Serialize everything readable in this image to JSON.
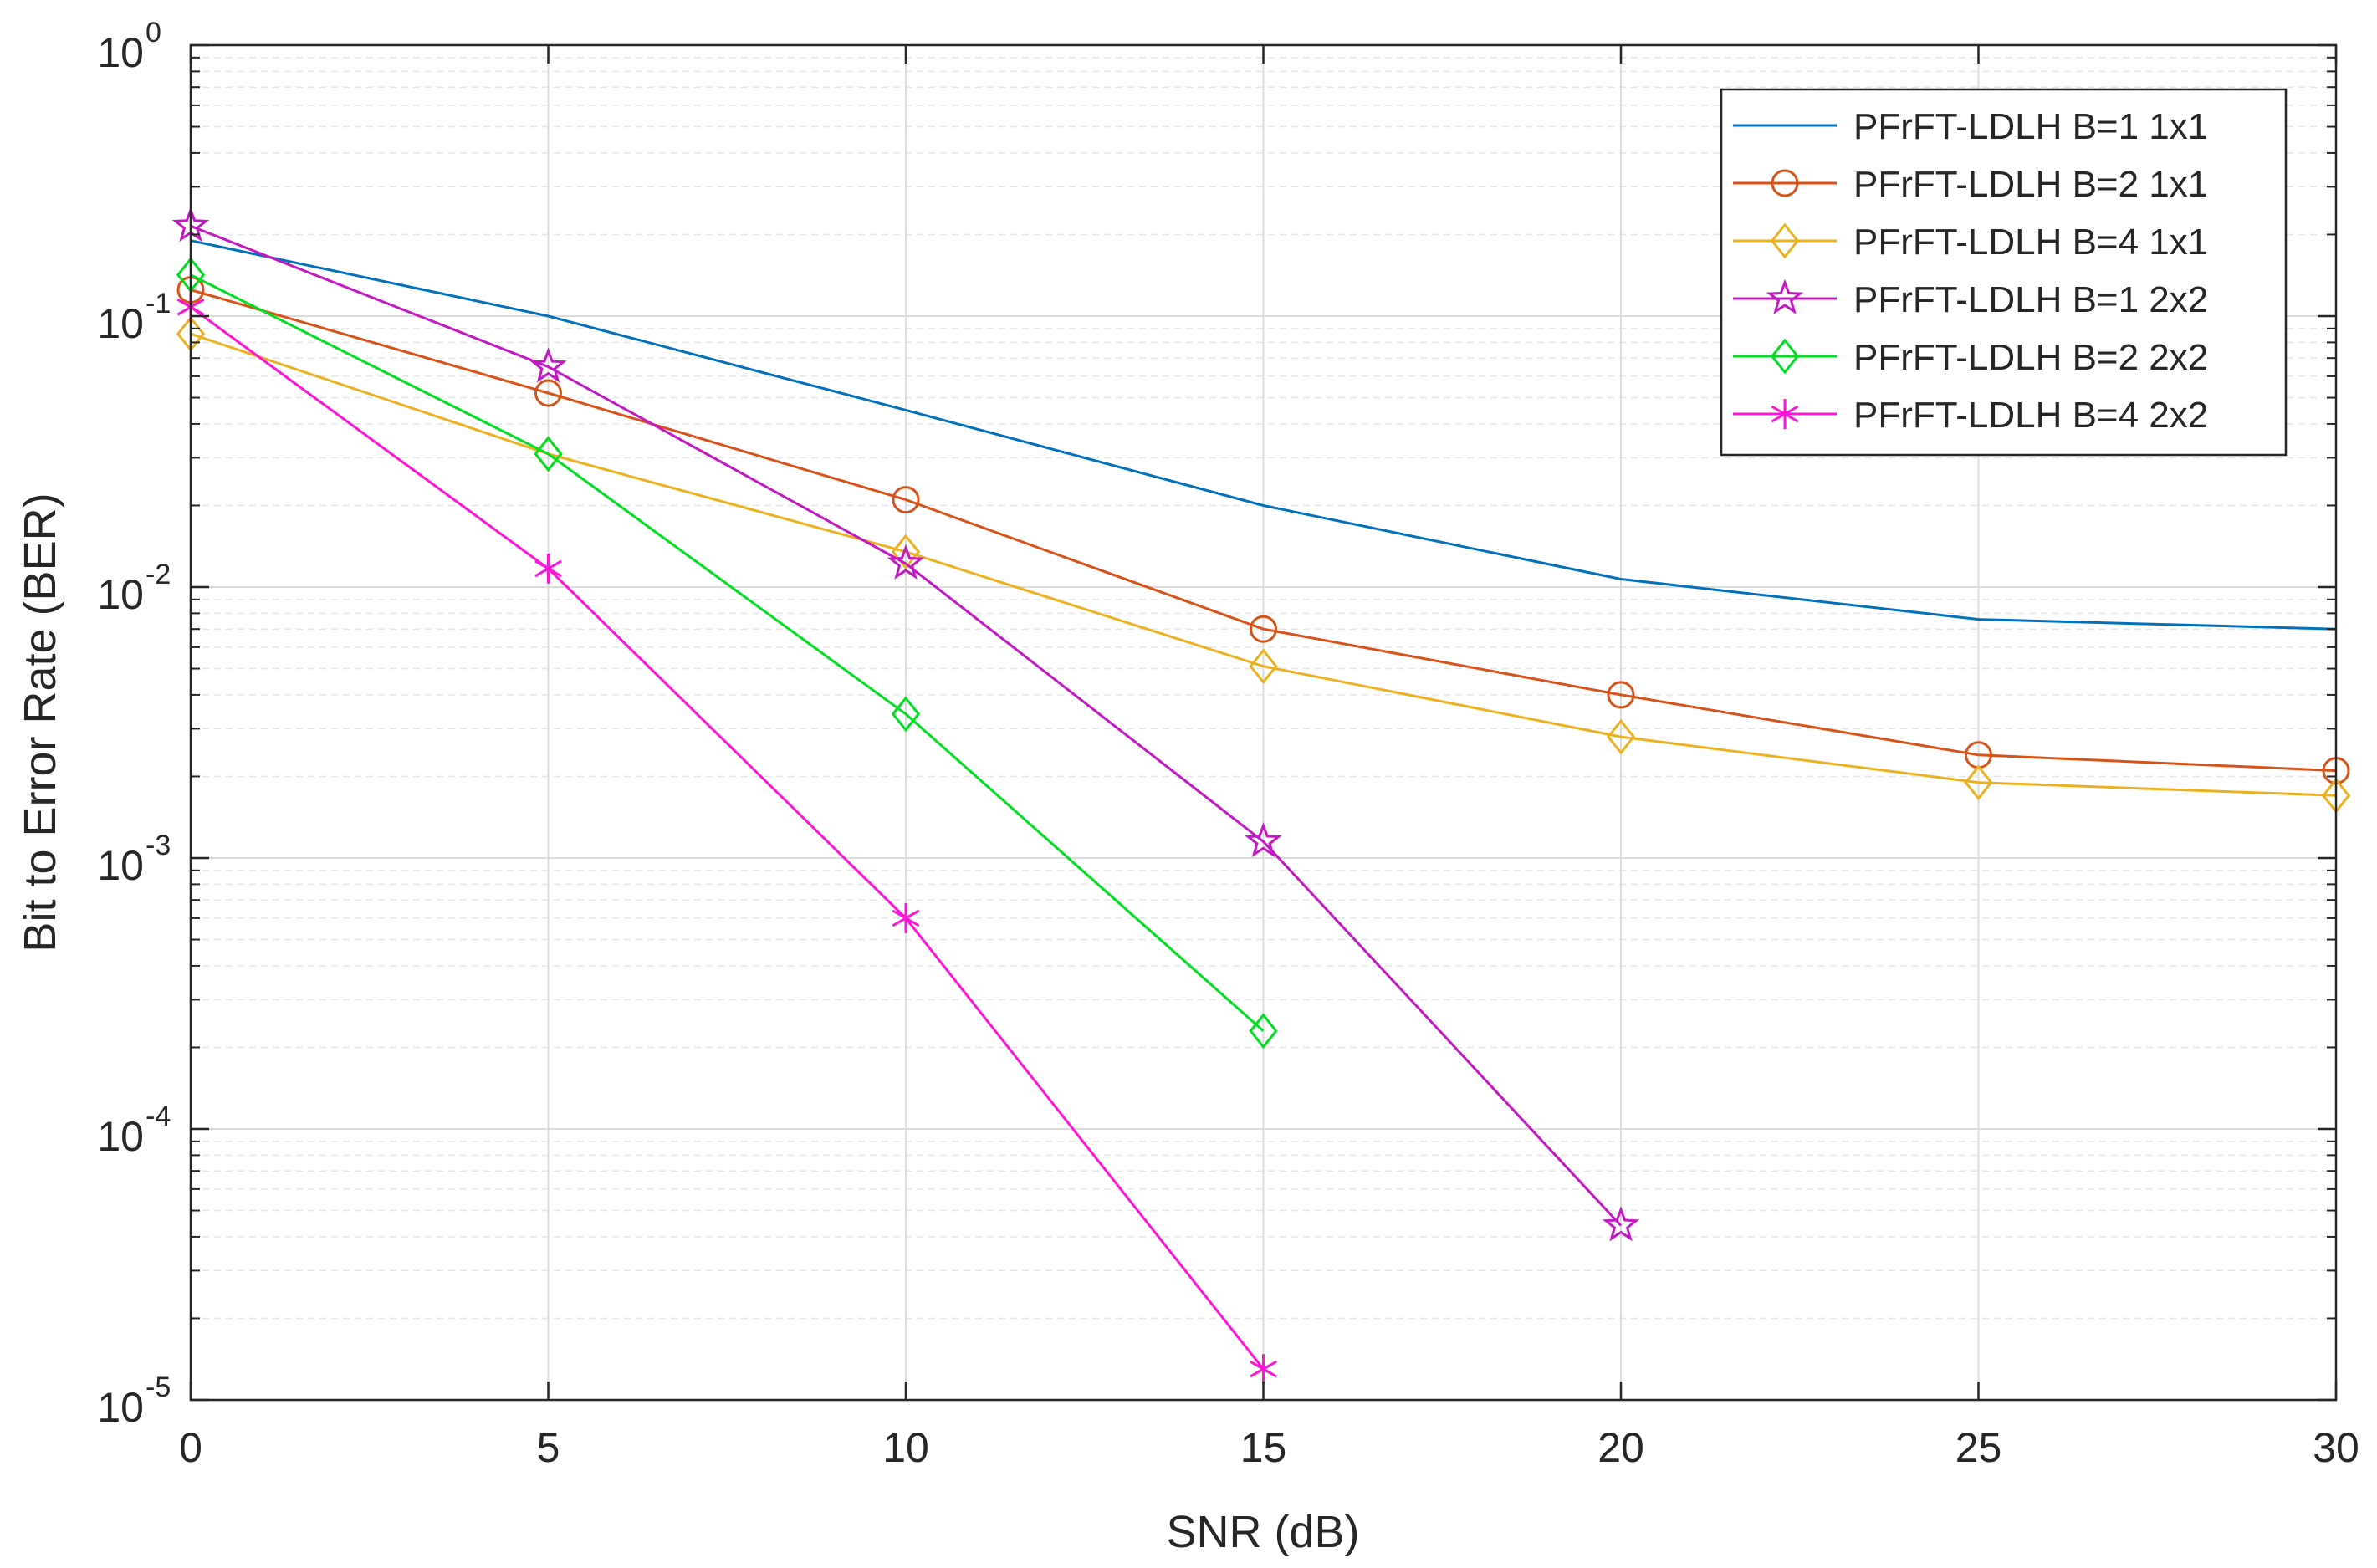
{
  "chart_data": {
    "type": "line",
    "title": "",
    "xlabel": "SNR (dB)",
    "ylabel": "Bit to Error Rate (BER)",
    "xlim": [
      0,
      30
    ],
    "ylim": [
      1e-05,
      1
    ],
    "yscale": "log",
    "grid": true,
    "legend_position": "top-right",
    "x_ticks": [
      0,
      5,
      10,
      15,
      20,
      25,
      30
    ],
    "x_tick_labels": [
      "0",
      "5",
      "10",
      "15",
      "20",
      "25",
      "30"
    ],
    "y_ticks": [
      {
        "value": 1,
        "base": "10",
        "exp": "0"
      },
      {
        "value": 0.1,
        "base": "10",
        "exp": "-1"
      },
      {
        "value": 0.01,
        "base": "10",
        "exp": "-2"
      },
      {
        "value": 0.001,
        "base": "10",
        "exp": "-3"
      },
      {
        "value": 0.0001,
        "base": "10",
        "exp": "-4"
      },
      {
        "value": 1e-05,
        "base": "10",
        "exp": "-5"
      }
    ],
    "series": [
      {
        "name": "PFrFT-LDLH B=1 1x1",
        "color": "#0072BD",
        "marker": "none",
        "x": [
          0,
          5,
          10,
          15,
          20,
          25,
          30
        ],
        "values": [
          0.19,
          0.1,
          0.045,
          0.02,
          0.0107,
          0.0076,
          0.007
        ]
      },
      {
        "name": "PFrFT-LDLH B=2 1x1",
        "color": "#D95319",
        "marker": "circle",
        "x": [
          0,
          5,
          10,
          15,
          20,
          25,
          30
        ],
        "values": [
          0.125,
          0.052,
          0.021,
          0.007,
          0.004,
          0.0024,
          0.0021
        ]
      },
      {
        "name": "PFrFT-LDLH B=4 1x1",
        "color": "#EDB120",
        "marker": "diamond",
        "x": [
          0,
          5,
          10,
          15,
          20,
          25,
          30
        ],
        "values": [
          0.086,
          0.031,
          0.0135,
          0.0051,
          0.0028,
          0.0019,
          0.0017
        ]
      },
      {
        "name": "PFrFT-LDLH B=1 2x2",
        "color": "#C418C4",
        "marker": "star",
        "x": [
          0,
          5,
          10,
          15,
          20
        ],
        "values": [
          0.215,
          0.065,
          0.0122,
          0.00115,
          4.4e-05
        ]
      },
      {
        "name": "PFrFT-LDLH B=2 2x2",
        "color": "#00E020",
        "marker": "diamond",
        "x": [
          0,
          5,
          10,
          15
        ],
        "values": [
          0.142,
          0.031,
          0.0034,
          0.00023
        ]
      },
      {
        "name": "PFrFT-LDLH B=4 2x2",
        "color": "#FF14D8",
        "marker": "asterisk",
        "x": [
          0,
          5,
          10,
          15
        ],
        "values": [
          0.108,
          0.0117,
          0.0006,
          1.3e-05
        ]
      }
    ]
  }
}
